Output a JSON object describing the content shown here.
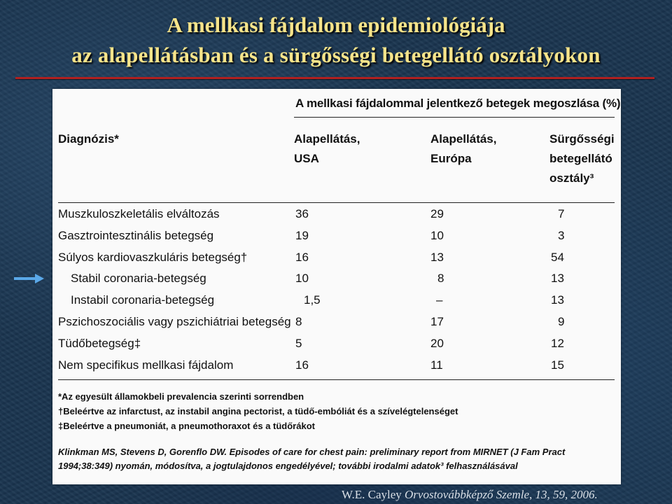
{
  "slide": {
    "title_line1": "A mellkasi fájdalom epidemiológiája",
    "title_line2": "az alapellátásban és a sürgősségi betegellátó osztályokon",
    "credit_author": "W.E. Cayley ",
    "credit_journal": "Orvostovábbképző Szemle, 13, 59, 2006."
  },
  "colors": {
    "title": "#f6e48a",
    "rule": "#b02020",
    "arrow": "#5aa8e8"
  },
  "table": {
    "header_main": "A mellkasi fájdalommal jelentkező betegek megoszlása (%)",
    "diag_header": "Diagnózis*",
    "columns": [
      {
        "line1": "Alapellátás,",
        "line2": "USA",
        "line3": ""
      },
      {
        "line1": "Alapellátás,",
        "line2": "Európa",
        "line3": ""
      },
      {
        "line1": "Sürgősségi",
        "line2": "betegellátó",
        "line3": "osztály³"
      }
    ],
    "rows": [
      {
        "label": "Muszkuloszkeletális elváltozás",
        "indent": false,
        "values": [
          "36",
          "29",
          "7"
        ]
      },
      {
        "label": "Gasztrointesztinális betegség",
        "indent": false,
        "values": [
          "19",
          "10",
          "3"
        ]
      },
      {
        "label": "Súlyos kardiovaszkuláris betegség†",
        "indent": false,
        "values": [
          "16",
          "13",
          "54"
        ]
      },
      {
        "label": "Stabil coronaria-betegség",
        "indent": true,
        "values": [
          "10",
          "8",
          "13"
        ]
      },
      {
        "label": "Instabil coronaria-betegség",
        "indent": true,
        "values": [
          "1,5",
          "–",
          "13"
        ]
      },
      {
        "label": "Pszichoszociális vagy pszichiátriai betegség",
        "indent": false,
        "values": [
          "8",
          "17",
          "9"
        ]
      },
      {
        "label": "Tüdőbetegség‡",
        "indent": false,
        "values": [
          "5",
          "20",
          "12"
        ]
      },
      {
        "label": "Nem specifikus mellkasi fájdalom",
        "indent": false,
        "values": [
          "16",
          "11",
          "15"
        ]
      }
    ],
    "footnotes": [
      "*Az egyesült államokbeli prevalencia szerinti sorrendben",
      "†Beleértve az infarctust, az instabil angina pectorist, a tüdő-embóliát és a szívelégtelenséget",
      "‡Beleértve a pneumoniát, a pneumothoraxot és a tüdőrákot"
    ],
    "reference": "Klinkman MS, Stevens D, Gorenflo DW. Episodes of care for chest pain: preliminary report from MIRNET (J Fam Pract 1994;38:349) nyomán, módosítva, a jogtulajdonos engedélyével; további irodalmi adatok³ felhasználásával"
  },
  "icons": {
    "pointer": "arrow-right-icon"
  }
}
